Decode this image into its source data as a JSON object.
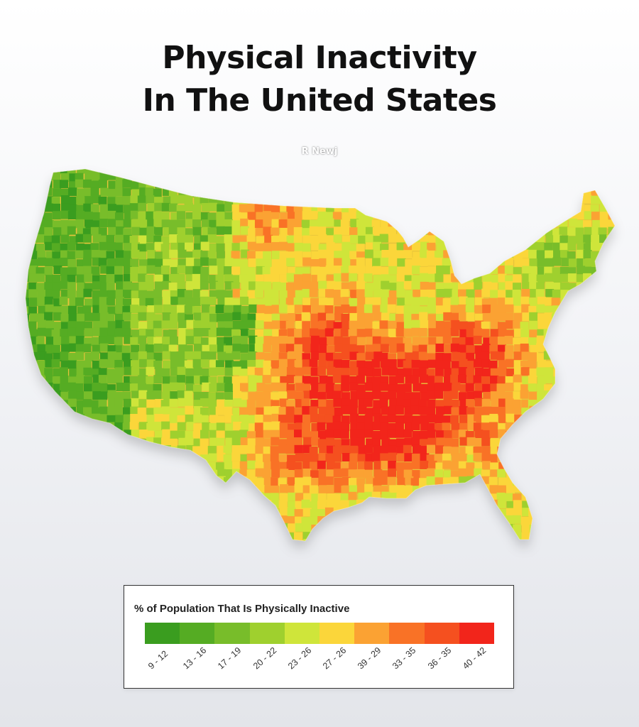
{
  "title": {
    "line1": "Physical Inactivity",
    "line2": "In The United States"
  },
  "watermark": "R Newj",
  "map": {
    "subject": "US county-level physical inactivity",
    "icon": "us-choropleth-map"
  },
  "legend": {
    "title": "% of Population That Is Physically Inactive",
    "bins": [
      {
        "label": "9 - 12",
        "color": "#3a9d1f"
      },
      {
        "label": "13 - 16",
        "color": "#55ac23"
      },
      {
        "label": "17 - 19",
        "color": "#78bd2a"
      },
      {
        "label": "20 - 22",
        "color": "#9fd02e"
      },
      {
        "label": "23 - 26",
        "color": "#cfe53a"
      },
      {
        "label": "27 - 26",
        "color": "#fbd63a"
      },
      {
        "label": "39 - 29",
        "color": "#fba233"
      },
      {
        "label": "33 - 35",
        "color": "#f97226"
      },
      {
        "label": "36 - 35",
        "color": "#f5501f"
      },
      {
        "label": "40 - 42",
        "color": "#f2251b"
      }
    ]
  }
}
